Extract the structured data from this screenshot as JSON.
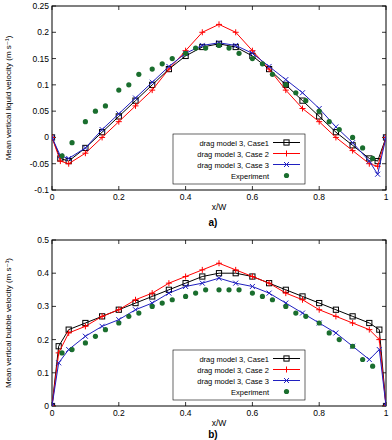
{
  "chart_data": [
    {
      "type": "line",
      "title": "a)",
      "x_label": "x/W",
      "y_label": "Mean vertical liquid velocity (m s⁻¹)",
      "xlim": [
        0,
        1
      ],
      "xticks": [
        0,
        0.2,
        0.4,
        0.6,
        0.8,
        1
      ],
      "ylim": [
        -0.1,
        0.25
      ],
      "yticks": [
        -0.1,
        -0.05,
        0,
        0.05,
        0.1,
        0.15,
        0.2,
        0.25
      ],
      "grid": false,
      "legend": "bottom",
      "series": [
        {
          "name": "drag model 3, Case1",
          "color": "#000000",
          "type": "line",
          "marker": "square",
          "line_style": "solid",
          "x": [
            0,
            0.025,
            0.05,
            0.1,
            0.15,
            0.2,
            0.25,
            0.3,
            0.35,
            0.4,
            0.45,
            0.5,
            0.55,
            0.6,
            0.65,
            0.7,
            0.75,
            0.8,
            0.85,
            0.9,
            0.95,
            0.975,
            1
          ],
          "values": [
            0,
            -0.04,
            -0.045,
            -0.02,
            0.01,
            0.04,
            0.07,
            0.1,
            0.13,
            0.155,
            0.172,
            0.178,
            0.172,
            0.155,
            0.13,
            0.1,
            0.07,
            0.04,
            0.01,
            -0.015,
            -0.04,
            -0.045,
            0
          ]
        },
        {
          "name": "drag model 3, Case 2",
          "color": "#ff0000",
          "type": "line",
          "marker": "plus",
          "line_style": "solid",
          "x": [
            0,
            0.025,
            0.05,
            0.1,
            0.15,
            0.2,
            0.25,
            0.3,
            0.35,
            0.4,
            0.45,
            0.5,
            0.55,
            0.6,
            0.65,
            0.7,
            0.75,
            0.8,
            0.85,
            0.9,
            0.95,
            0.975,
            1
          ],
          "values": [
            0,
            -0.045,
            -0.05,
            -0.03,
            0,
            0.03,
            0.06,
            0.09,
            0.13,
            0.165,
            0.2,
            0.215,
            0.2,
            0.165,
            0.13,
            0.09,
            0.055,
            0.03,
            0,
            -0.025,
            -0.05,
            -0.055,
            0
          ]
        },
        {
          "name": "drag model 3, Case 3",
          "color": "#2020c0",
          "type": "line",
          "marker": "cross",
          "line_style": "solid",
          "x": [
            0,
            0.025,
            0.05,
            0.1,
            0.15,
            0.2,
            0.25,
            0.3,
            0.35,
            0.4,
            0.45,
            0.5,
            0.55,
            0.6,
            0.65,
            0.7,
            0.75,
            0.8,
            0.85,
            0.9,
            0.95,
            0.975,
            1
          ],
          "values": [
            0,
            -0.035,
            -0.04,
            -0.02,
            0.015,
            0.045,
            0.075,
            0.105,
            0.135,
            0.16,
            0.175,
            0.18,
            0.175,
            0.16,
            0.135,
            0.11,
            0.085,
            0.055,
            0.02,
            -0.01,
            -0.045,
            -0.07,
            0
          ]
        },
        {
          "name": "Experiment",
          "color": "#1a6e2e",
          "type": "scatter",
          "marker": "circle",
          "line_style": "none",
          "x": [
            0.03,
            0.06,
            0.1,
            0.13,
            0.16,
            0.2,
            0.23,
            0.26,
            0.3,
            0.33,
            0.36,
            0.4,
            0.43,
            0.46,
            0.5,
            0.53,
            0.56,
            0.6,
            0.63,
            0.66,
            0.7,
            0.73,
            0.76,
            0.8,
            0.83,
            0.86,
            0.9,
            0.93,
            0.96
          ],
          "values": [
            -0.035,
            -0.01,
            0.03,
            0.05,
            0.06,
            0.09,
            0.1,
            0.12,
            0.13,
            0.14,
            0.15,
            0.16,
            0.17,
            0.17,
            0.175,
            0.17,
            0.16,
            0.15,
            0.14,
            0.12,
            0.1,
            0.085,
            0.07,
            0.05,
            0.03,
            0.015,
            0,
            -0.02,
            -0.04
          ]
        }
      ]
    },
    {
      "type": "line",
      "title": "b)",
      "x_label": "x/W",
      "y_label": "Mean vertical bubble velocity (m s⁻¹)",
      "xlim": [
        0,
        1
      ],
      "xticks": [
        0,
        0.2,
        0.4,
        0.6,
        0.8,
        1
      ],
      "ylim": [
        0,
        0.5
      ],
      "yticks": [
        0,
        0.1,
        0.2,
        0.3,
        0.4,
        0.5
      ],
      "grid": false,
      "legend": "bottom",
      "series": [
        {
          "name": "drag model 3, Case1",
          "color": "#000000",
          "type": "line",
          "marker": "square",
          "line_style": "solid",
          "x": [
            0,
            0.02,
            0.05,
            0.1,
            0.15,
            0.2,
            0.25,
            0.3,
            0.35,
            0.4,
            0.45,
            0.5,
            0.55,
            0.6,
            0.65,
            0.7,
            0.75,
            0.8,
            0.85,
            0.9,
            0.95,
            0.98,
            1
          ],
          "values": [
            0,
            0.18,
            0.23,
            0.25,
            0.27,
            0.29,
            0.31,
            0.33,
            0.35,
            0.37,
            0.39,
            0.4,
            0.4,
            0.39,
            0.37,
            0.35,
            0.33,
            0.31,
            0.29,
            0.27,
            0.25,
            0.23,
            0
          ]
        },
        {
          "name": "drag model 3, Case 2",
          "color": "#ff0000",
          "type": "line",
          "marker": "plus",
          "line_style": "solid",
          "x": [
            0,
            0.02,
            0.05,
            0.1,
            0.15,
            0.2,
            0.25,
            0.3,
            0.35,
            0.4,
            0.45,
            0.5,
            0.55,
            0.6,
            0.65,
            0.7,
            0.75,
            0.8,
            0.85,
            0.9,
            0.95,
            0.98,
            1
          ],
          "values": [
            0,
            0.16,
            0.22,
            0.24,
            0.27,
            0.29,
            0.32,
            0.34,
            0.37,
            0.39,
            0.41,
            0.43,
            0.41,
            0.39,
            0.37,
            0.34,
            0.32,
            0.29,
            0.27,
            0.25,
            0.23,
            0.2,
            0
          ]
        },
        {
          "name": "drag model 3, Case 3",
          "color": "#2020c0",
          "type": "line",
          "marker": "cross",
          "line_style": "solid",
          "x": [
            0,
            0.02,
            0.05,
            0.1,
            0.15,
            0.2,
            0.25,
            0.3,
            0.35,
            0.4,
            0.45,
            0.5,
            0.55,
            0.6,
            0.65,
            0.7,
            0.75,
            0.8,
            0.85,
            0.9,
            0.95,
            0.98,
            1
          ],
          "values": [
            0,
            0.13,
            0.17,
            0.21,
            0.24,
            0.26,
            0.29,
            0.31,
            0.34,
            0.36,
            0.37,
            0.385,
            0.37,
            0.36,
            0.34,
            0.31,
            0.28,
            0.25,
            0.22,
            0.18,
            0.14,
            0.17,
            0
          ]
        },
        {
          "name": "Experiment",
          "color": "#1a6e2e",
          "type": "scatter",
          "marker": "circle",
          "line_style": "none",
          "x": [
            0.03,
            0.06,
            0.1,
            0.13,
            0.16,
            0.2,
            0.23,
            0.26,
            0.3,
            0.33,
            0.36,
            0.4,
            0.43,
            0.46,
            0.5,
            0.53,
            0.56,
            0.6,
            0.63,
            0.66,
            0.7,
            0.73,
            0.76,
            0.8,
            0.83,
            0.86,
            0.9,
            0.93,
            0.96
          ],
          "values": [
            0.16,
            0.17,
            0.19,
            0.21,
            0.23,
            0.25,
            0.27,
            0.28,
            0.3,
            0.31,
            0.32,
            0.33,
            0.34,
            0.35,
            0.35,
            0.35,
            0.35,
            0.34,
            0.33,
            0.32,
            0.3,
            0.28,
            0.27,
            0.25,
            0.22,
            0.2,
            0.18,
            0.14,
            0.12
          ]
        }
      ]
    }
  ]
}
